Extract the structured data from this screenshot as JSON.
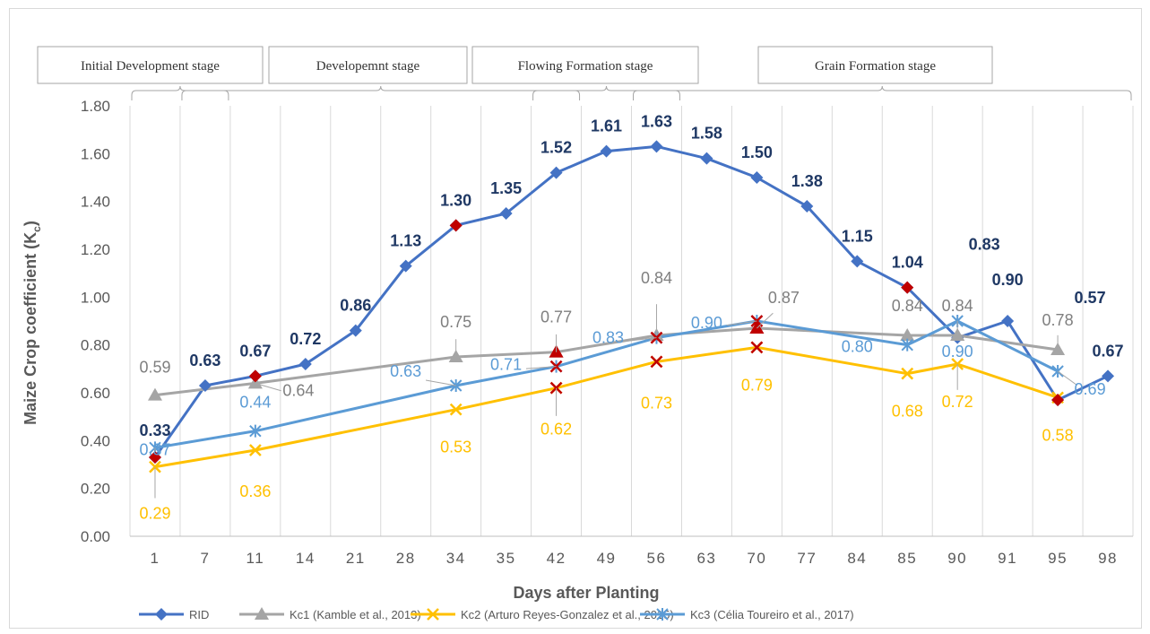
{
  "chart_data": {
    "type": "line",
    "xlabel": "Days after Planting",
    "ylabel": "Maize Crop coefficient (K",
    "ylabel_subscript": "c",
    "ylabel_suffix": ")",
    "ylim": [
      0,
      1.8
    ],
    "yticks": [
      "0.00",
      "0.20",
      "0.40",
      "0.60",
      "0.80",
      "1.00",
      "1.20",
      "1.40",
      "1.60",
      "1.80"
    ],
    "grid": "vertical",
    "legend_position": "bottom",
    "categories": [
      "1",
      "7",
      "11",
      "14",
      "21",
      "28",
      "34",
      "35",
      "42",
      "49",
      "56",
      "63",
      "70",
      "77",
      "84",
      "85",
      "90",
      "91",
      "95",
      "98"
    ],
    "stages": [
      {
        "label": "Initial Development stage",
        "from": 0,
        "to": 1
      },
      {
        "label": "Developemnt stage",
        "from": 1,
        "to": 8
      },
      {
        "label": "Flowing Formation stage",
        "from": 8,
        "to": 10
      },
      {
        "label": "Grain Formation stage",
        "from": 10,
        "to": 19
      }
    ],
    "series": [
      {
        "name": "RID",
        "color": "#4472c4",
        "marker": "diamond",
        "points": [
          [
            0,
            0.33
          ],
          [
            1,
            0.63
          ],
          [
            2,
            0.67
          ],
          [
            3,
            0.72
          ],
          [
            4,
            0.86
          ],
          [
            5,
            1.13
          ],
          [
            6,
            1.3
          ],
          [
            7,
            1.35
          ],
          [
            8,
            1.52
          ],
          [
            9,
            1.61
          ],
          [
            10,
            1.63
          ],
          [
            11,
            1.58
          ],
          [
            12,
            1.5
          ],
          [
            13,
            1.38
          ],
          [
            14,
            1.15
          ],
          [
            15,
            1.04
          ],
          [
            16,
            0.83
          ],
          [
            17,
            0.9
          ],
          [
            18,
            0.57
          ],
          [
            19,
            0.67
          ]
        ],
        "labels": [
          "0.33",
          "0.63",
          "0.67",
          "0.72",
          "0.86",
          "1.13",
          "1.30",
          "1.35",
          "1.52",
          "1.61",
          "1.63",
          "1.58",
          "1.50",
          "1.38",
          "1.15",
          "1.04",
          "0.83",
          "0.90",
          "0.57",
          "0.67"
        ]
      },
      {
        "name": "Kc1 (Kamble et al., 2013)",
        "color": "#a5a5a5",
        "marker": "triangle",
        "points": [
          [
            0,
            0.59
          ],
          [
            2,
            0.64
          ],
          [
            6,
            0.75
          ],
          [
            8,
            0.77
          ],
          [
            10,
            0.84
          ],
          [
            12,
            0.87
          ],
          [
            15,
            0.84
          ],
          [
            16,
            0.84
          ],
          [
            18,
            0.78
          ]
        ],
        "labels": [
          "0.59",
          "0.64",
          "0.75",
          "0.77",
          "0.84",
          "0.87",
          "0.84",
          "0.84",
          "0.78"
        ]
      },
      {
        "name": "Kc2 (Arturo Reyes-Gonzalez et al., 2015)",
        "color": "#ffc000",
        "marker": "x",
        "points": [
          [
            0,
            0.29
          ],
          [
            2,
            0.36
          ],
          [
            6,
            0.53
          ],
          [
            8,
            0.62
          ],
          [
            10,
            0.73
          ],
          [
            12,
            0.79
          ],
          [
            15,
            0.68
          ],
          [
            16,
            0.72
          ],
          [
            18,
            0.58
          ]
        ],
        "labels": [
          "0.29",
          "0.36",
          "0.53",
          "0.62",
          "0.73",
          "0.79",
          "0.68",
          "0.72",
          "0.58"
        ]
      },
      {
        "name": "Kc3 (Célia Toureiro et al., 2017)",
        "color": "#5b9bd5",
        "marker": "asterisk",
        "points": [
          [
            0,
            0.37
          ],
          [
            2,
            0.44
          ],
          [
            6,
            0.63
          ],
          [
            8,
            0.71
          ],
          [
            10,
            0.83
          ],
          [
            12,
            0.9
          ],
          [
            15,
            0.8
          ],
          [
            16,
            0.9
          ],
          [
            18,
            0.69
          ]
        ],
        "labels": [
          "0.37",
          "0.44",
          "0.63",
          "0.71",
          "0.83",
          "0.90",
          "0.80",
          "0.90",
          "0.69"
        ]
      }
    ],
    "highlight_markers": [
      {
        "x": 0,
        "y": 0.33,
        "color": "#c00000",
        "shape": "diamond"
      },
      {
        "x": 2,
        "y": 0.67,
        "color": "#c00000",
        "shape": "diamond"
      },
      {
        "x": 6,
        "y": 1.3,
        "color": "#c00000",
        "shape": "diamond"
      },
      {
        "x": 15,
        "y": 1.04,
        "color": "#c00000",
        "shape": "diamond"
      },
      {
        "x": 18,
        "y": 0.57,
        "color": "#c00000",
        "shape": "diamond"
      },
      {
        "x": 8,
        "y": 0.77,
        "color": "#c00000",
        "shape": "triangle"
      },
      {
        "x": 12,
        "y": 0.87,
        "color": "#c00000",
        "shape": "triangle"
      },
      {
        "x": 16,
        "y": 0.84,
        "color": "#a5a5a5",
        "shape": "triangle"
      },
      {
        "x": 8,
        "y": 0.71,
        "color": "#c00000",
        "shape": "x"
      },
      {
        "x": 10,
        "y": 0.83,
        "color": "#c00000",
        "shape": "x"
      },
      {
        "x": 12,
        "y": 0.9,
        "color": "#c00000",
        "shape": "x"
      },
      {
        "x": 8,
        "y": 0.62,
        "color": "#c00000",
        "shape": "x"
      },
      {
        "x": 10,
        "y": 0.73,
        "color": "#c00000",
        "shape": "x"
      },
      {
        "x": 12,
        "y": 0.79,
        "color": "#c00000",
        "shape": "x"
      }
    ]
  }
}
